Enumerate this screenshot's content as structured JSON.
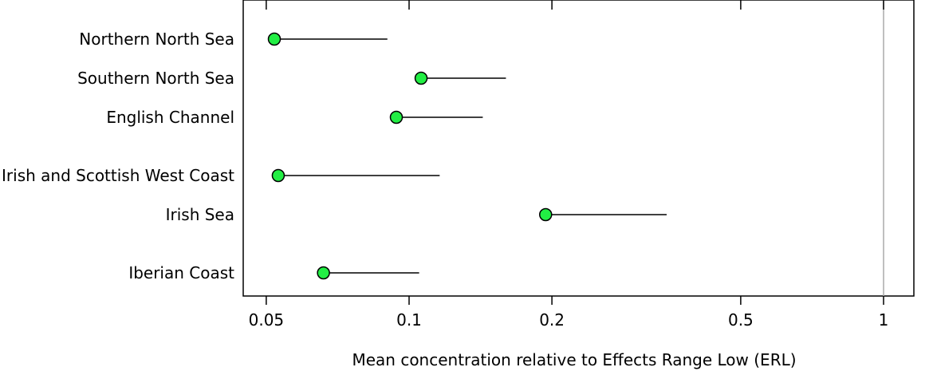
{
  "chart_data": {
    "type": "dot-interval",
    "xlabel": "Mean concentration relative to Effects Range Low (ERL)",
    "x_scale": "log",
    "xlim": [
      0.045,
      1.2
    ],
    "x_ticks": [
      0.05,
      0.1,
      0.2,
      0.5,
      1
    ],
    "x_tick_labels": [
      "0.05",
      "0.1",
      "0.2",
      "0.5",
      "1"
    ],
    "reference_line": 1,
    "point_color": "#22ee44",
    "categories": [
      "Northern North Sea",
      "Southern North Sea",
      "English Channel",
      "Irish and Scottish West Coast",
      "Irish Sea",
      "Iberian Coast"
    ],
    "group_breaks_after": [
      2,
      4
    ],
    "mean": [
      0.052,
      0.106,
      0.094,
      0.053,
      0.194,
      0.066
    ],
    "upper": [
      0.09,
      0.16,
      0.143,
      0.116,
      0.349,
      0.105
    ]
  }
}
